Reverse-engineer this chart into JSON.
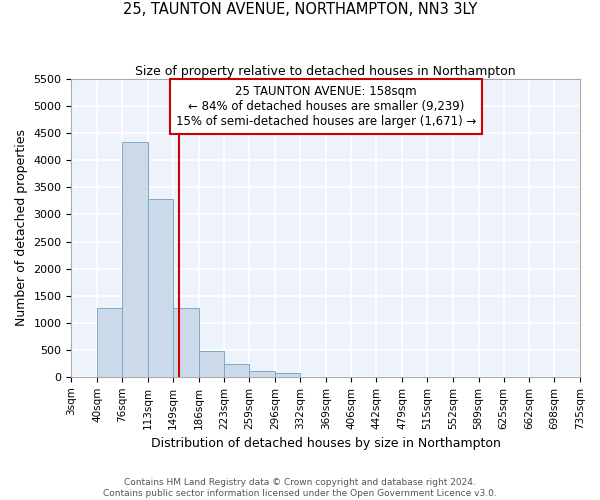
{
  "title1": "25, TAUNTON AVENUE, NORTHAMPTON, NN3 3LY",
  "title2": "Size of property relative to detached houses in Northampton",
  "xlabel": "Distribution of detached houses by size in Northampton",
  "ylabel": "Number of detached properties",
  "annotation_line1": "25 TAUNTON AVENUE: 158sqm",
  "annotation_line2": "← 84% of detached houses are smaller (9,239)",
  "annotation_line3": "15% of semi-detached houses are larger (1,671) →",
  "property_size": 158,
  "categories": [
    "3sqm",
    "40sqm",
    "76sqm",
    "113sqm",
    "149sqm",
    "186sqm",
    "223sqm",
    "259sqm",
    "296sqm",
    "332sqm",
    "369sqm",
    "406sqm",
    "442sqm",
    "479sqm",
    "515sqm",
    "552sqm",
    "589sqm",
    "625sqm",
    "662sqm",
    "698sqm",
    "735sqm"
  ],
  "bin_edges": [
    3,
    40,
    76,
    113,
    149,
    186,
    223,
    259,
    296,
    332,
    369,
    406,
    442,
    479,
    515,
    552,
    589,
    625,
    662,
    698,
    735
  ],
  "values": [
    0,
    1270,
    4340,
    3290,
    1280,
    480,
    230,
    100,
    65,
    5,
    5,
    5,
    0,
    0,
    0,
    0,
    0,
    0,
    0,
    0
  ],
  "bar_color": "#ccd9e8",
  "bar_edge_color": "#7aaac8",
  "vline_color": "#cc0000",
  "vline_x": 158,
  "ylim": [
    0,
    5500
  ],
  "yticks": [
    0,
    500,
    1000,
    1500,
    2000,
    2500,
    3000,
    3500,
    4000,
    4500,
    5000,
    5500
  ],
  "bg_color": "#eef2fa",
  "grid_color": "#ffffff",
  "annotation_box_color": "#cc0000",
  "footer1": "Contains HM Land Registry data © Crown copyright and database right 2024.",
  "footer2": "Contains public sector information licensed under the Open Government Licence v3.0."
}
